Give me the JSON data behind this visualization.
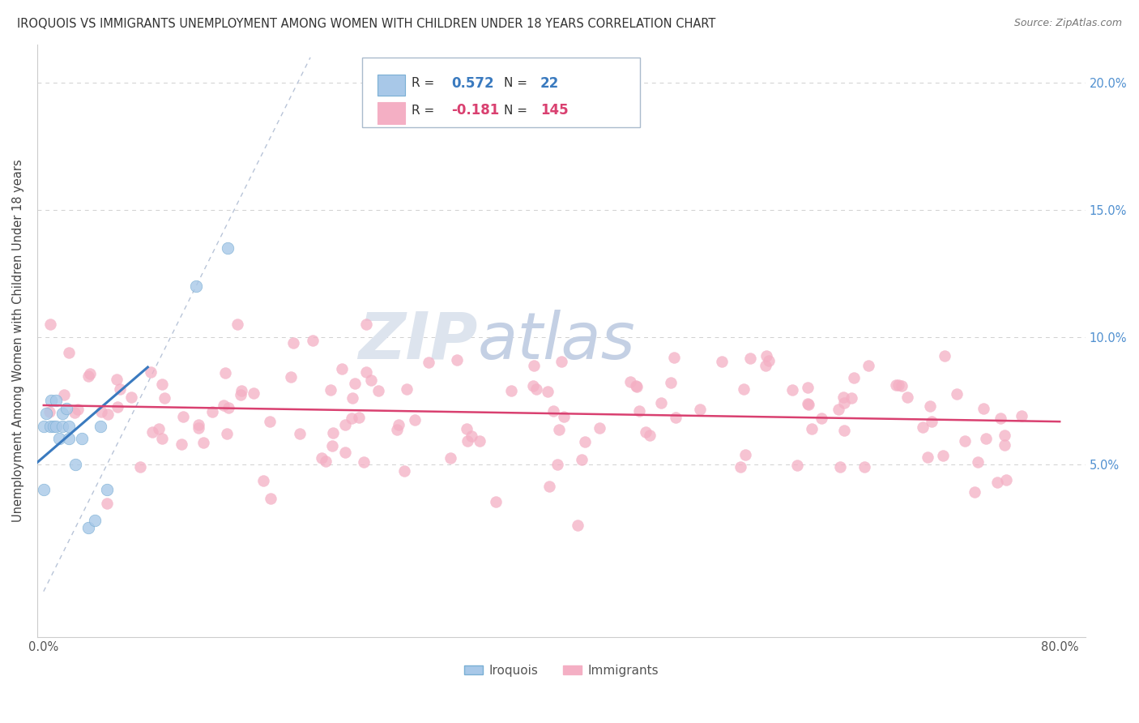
{
  "title": "IROQUOIS VS IMMIGRANTS UNEMPLOYMENT AMONG WOMEN WITH CHILDREN UNDER 18 YEARS CORRELATION CHART",
  "source": "Source: ZipAtlas.com",
  "ylabel": "Unemployment Among Women with Children Under 18 years",
  "xlim": [
    -0.005,
    0.82
  ],
  "ylim": [
    -0.018,
    0.215
  ],
  "xtick_positions": [
    0.0,
    0.1,
    0.2,
    0.3,
    0.4,
    0.5,
    0.6,
    0.7,
    0.8
  ],
  "xticklabels": [
    "0.0%",
    "",
    "",
    "",
    "",
    "",
    "",
    "",
    "80.0%"
  ],
  "ytick_positions": [
    0.0,
    0.05,
    0.1,
    0.15,
    0.2
  ],
  "yticklabels_right": [
    "",
    "5.0%",
    "10.0%",
    "15.0%",
    "20.0%"
  ],
  "iroquois_R": 0.572,
  "iroquois_N": 22,
  "immigrants_R": -0.181,
  "immigrants_N": 145,
  "iroquois_color": "#a8c8e8",
  "immigrants_color": "#f4afc4",
  "iroquois_edge_color": "#7aafd4",
  "immigrants_edge_color": "#f4afc4",
  "iroquois_line_color": "#3a7abf",
  "immigrants_line_color": "#d94070",
  "diagonal_color": "#b8c4d8",
  "watermark_zip_color": "#dde4ee",
  "watermark_atlas_color": "#c8d4e8",
  "legend_iroquois_label": "Iroquois",
  "legend_immigrants_label": "Immigrants",
  "background_color": "#ffffff",
  "grid_color": "#d0d0d0",
  "right_tick_color": "#5090d0"
}
